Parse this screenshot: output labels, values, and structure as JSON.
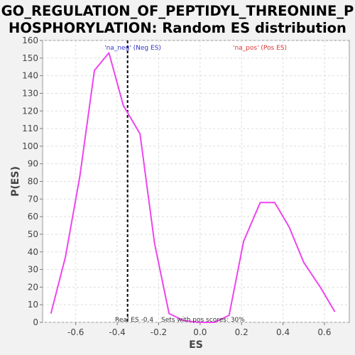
{
  "colors": {
    "background": "#f2f2f2",
    "plot_background": "#ffffff",
    "grid": "#dddddd",
    "curve": "#ee44ee",
    "neg_label": "#3333cc",
    "pos_label": "#dd3333",
    "real_es_line": "#000000"
  },
  "chart_data": {
    "type": "line",
    "title_line1": "GO_REGULATION_OF_PEPTIDYL_THREONINE_P",
    "title_line2": "HOSPHORYLATION: Random ES distribution",
    "xlabel": "ES",
    "ylabel": "P(ES)",
    "xlim": [
      -0.76,
      0.72
    ],
    "ylim": [
      0,
      160
    ],
    "x_ticks": [
      -0.6,
      -0.4,
      -0.2,
      0.0,
      0.2,
      0.4,
      0.6
    ],
    "x_tick_labels": [
      "-0.6",
      "-0.4",
      "-0.2",
      "0.0",
      "0.2",
      "0.4",
      "0.6"
    ],
    "y_ticks": [
      0,
      10,
      20,
      30,
      40,
      50,
      60,
      70,
      80,
      90,
      100,
      110,
      120,
      130,
      140,
      150,
      160
    ],
    "y_tick_labels": [
      "0",
      "10",
      "20",
      "30",
      "40",
      "50",
      "60",
      "70",
      "80",
      "90",
      "100",
      "110",
      "120",
      "130",
      "140",
      "150",
      "160"
    ],
    "grid": true,
    "series": [
      {
        "x": [
          -0.72,
          -0.65,
          -0.58,
          -0.51,
          -0.44,
          -0.37,
          -0.29,
          -0.22,
          -0.15,
          -0.08,
          -0.01,
          0.07,
          0.14,
          0.21,
          0.29,
          0.36,
          0.43,
          0.5,
          0.58,
          0.65
        ],
        "y": [
          5,
          37,
          83,
          143,
          153,
          123,
          107,
          45,
          5,
          1,
          0,
          0,
          4,
          46,
          68,
          68,
          54,
          34,
          20,
          6
        ]
      }
    ],
    "real_es": -0.35,
    "annotations": {
      "neg_label": "'na_neg' (Neg ES)",
      "pos_label": "'na_pos' (Pos ES)",
      "real_es_text": "Real ES -0.4",
      "pos_scores_text": "Sets with pos scores: 30%"
    }
  }
}
